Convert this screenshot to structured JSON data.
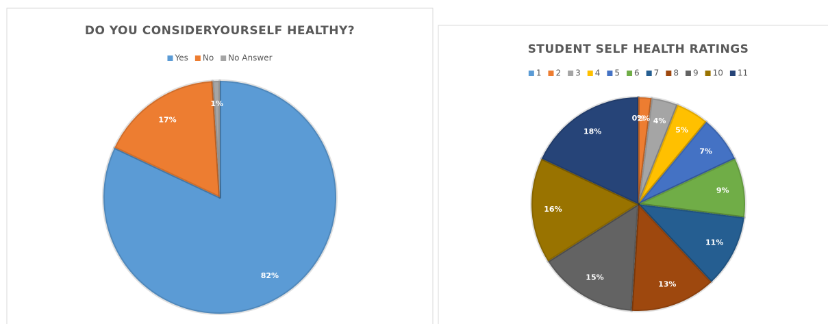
{
  "chart_data": [
    {
      "type": "pie",
      "title": "DO YOU CONSIDERYOURSELF HEALTHY?",
      "categories": [
        "Yes",
        "No",
        "No Answer"
      ],
      "values": [
        82,
        17,
        1
      ],
      "value_labels": [
        "82%",
        "17%",
        "1%"
      ],
      "colors": [
        "#5b9bd5",
        "#ed7d31",
        "#a5a5a5"
      ]
    },
    {
      "type": "pie",
      "title": "STUDENT SELF HEALTH RATINGS",
      "categories": [
        "1",
        "2",
        "3",
        "4",
        "5",
        "6",
        "7",
        "8",
        "9",
        "10",
        "11"
      ],
      "values": [
        0,
        2,
        4,
        5,
        7,
        9,
        11,
        13,
        15,
        16,
        18
      ],
      "value_labels": [
        "0%",
        "2%",
        "4%",
        "5%",
        "7%",
        "9%",
        "11%",
        "13%",
        "15%",
        "16%",
        "18%"
      ],
      "colors": [
        "#5b9bd5",
        "#ed7d31",
        "#a5a5a5",
        "#ffc000",
        "#4472c4",
        "#70ad47",
        "#255e91",
        "#9e480e",
        "#636363",
        "#997300",
        "#264478"
      ]
    }
  ]
}
